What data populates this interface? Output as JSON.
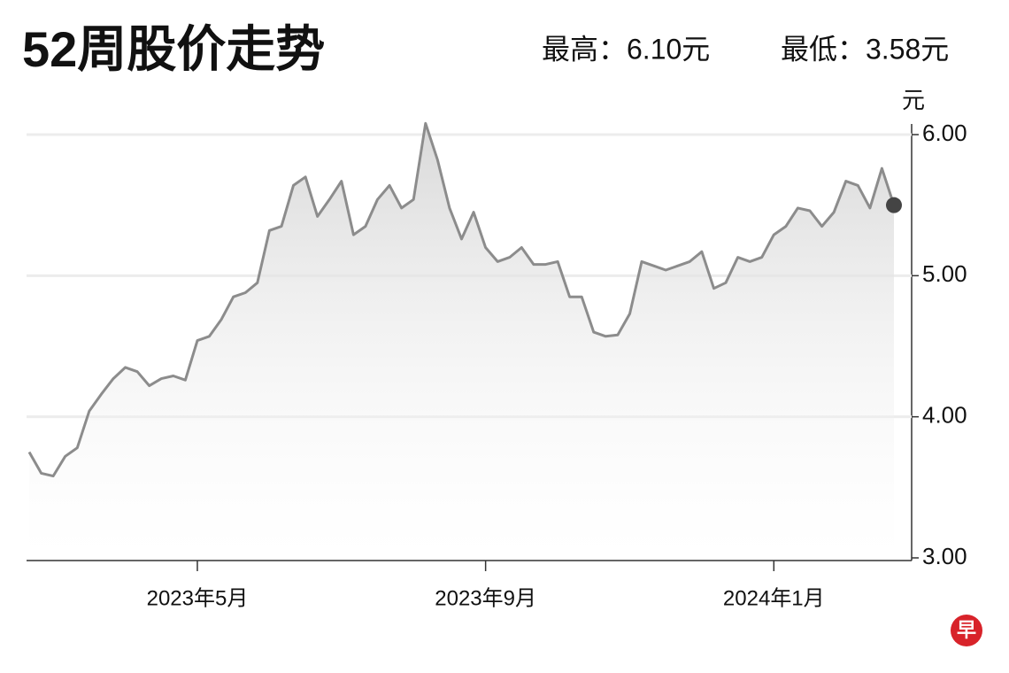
{
  "chart_data": {
    "type": "line",
    "title": "52周股价走势",
    "high_label": "最高：6.10元",
    "low_label": "最低：3.58元",
    "y_unit": "元",
    "categories": [
      null,
      null,
      null,
      null,
      null,
      null,
      null,
      null,
      null,
      null,
      null,
      null,
      null,
      null,
      "2023年5月",
      null,
      null,
      null,
      null,
      null,
      null,
      null,
      null,
      null,
      null,
      null,
      null,
      null,
      null,
      null,
      null,
      null,
      null,
      null,
      null,
      null,
      null,
      null,
      "2023年9月",
      null,
      null,
      null,
      null,
      null,
      null,
      null,
      null,
      null,
      null,
      null,
      null,
      null,
      null,
      null,
      null,
      null,
      null,
      null,
      null,
      null,
      null,
      null,
      "2024年1月",
      null,
      null,
      null,
      null,
      null,
      null,
      null,
      null,
      null,
      null
    ],
    "values": [
      3.75,
      3.6,
      3.58,
      3.72,
      3.78,
      4.04,
      4.16,
      4.27,
      4.35,
      4.32,
      4.22,
      4.27,
      4.29,
      4.26,
      4.54,
      4.57,
      4.69,
      4.85,
      4.88,
      4.95,
      5.32,
      5.35,
      5.64,
      5.7,
      5.42,
      5.54,
      5.67,
      5.29,
      5.35,
      5.54,
      5.64,
      5.48,
      5.54,
      6.08,
      5.82,
      5.48,
      5.26,
      5.45,
      5.2,
      5.1,
      5.13,
      5.2,
      5.08,
      5.08,
      5.1,
      4.85,
      4.85,
      4.6,
      4.57,
      4.58,
      4.73,
      5.1,
      5.07,
      5.04,
      5.07,
      5.1,
      5.17,
      4.91,
      4.95,
      5.13,
      5.1,
      5.13,
      5.29,
      5.35,
      5.48,
      5.46,
      5.35,
      5.45,
      5.67,
      5.64,
      5.48,
      5.76,
      5.5
    ],
    "color": "#8c8c8c",
    "ylim": [
      3,
      6
    ],
    "yticks": [
      {
        "value": 3,
        "label": "3.00"
      },
      {
        "value": 4,
        "label": "4.00"
      },
      {
        "value": 5,
        "label": "5.00"
      },
      {
        "value": 6,
        "label": "6.00"
      }
    ],
    "grid": true
  },
  "logo": "早"
}
